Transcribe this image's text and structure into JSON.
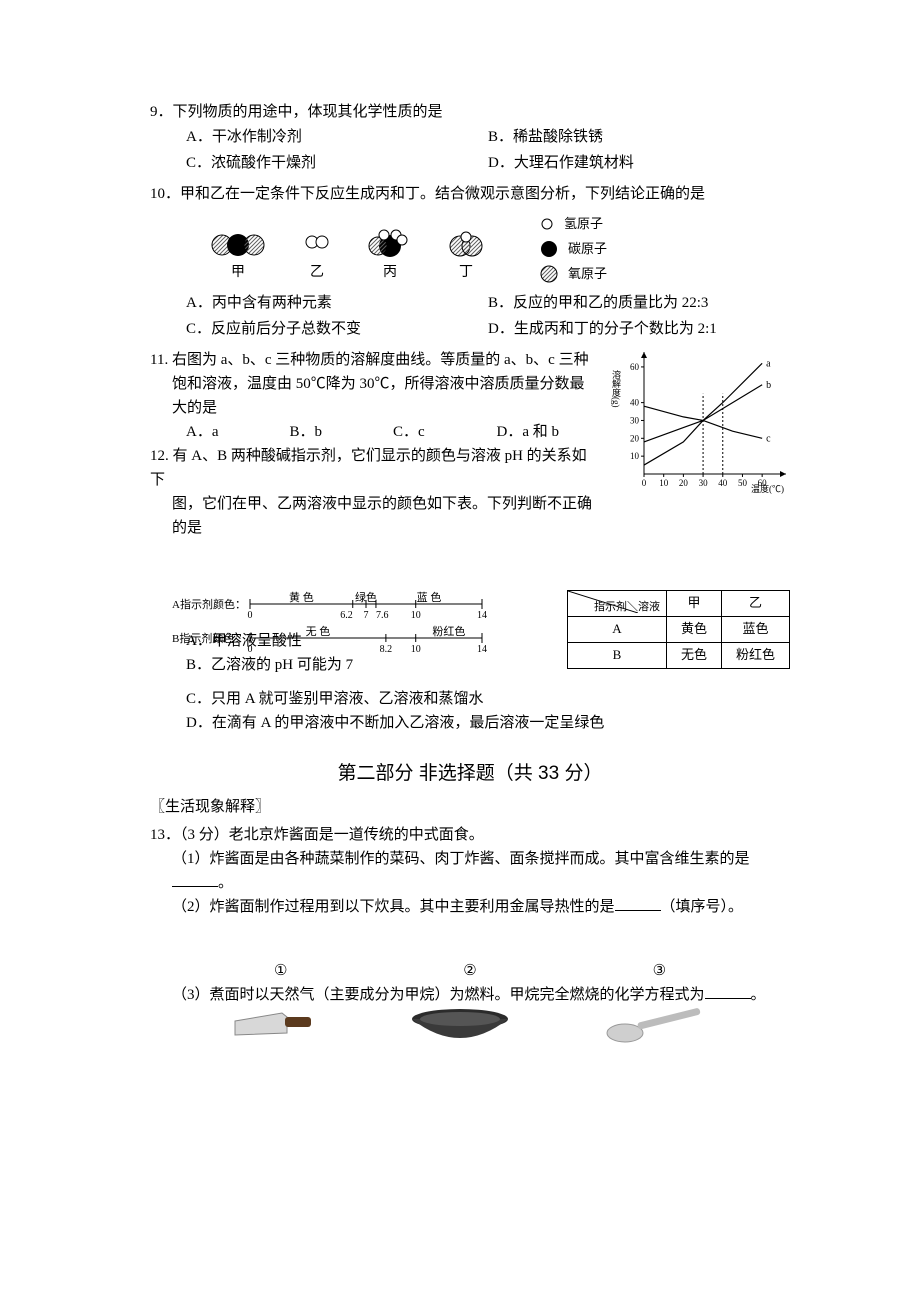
{
  "q9": {
    "num": "9．",
    "stem": "下列物质的用途中，体现其化学性质的是",
    "optA": "A．干冰作制冷剂",
    "optB": "B．稀盐酸除铁锈",
    "optC": "C．浓硫酸作干燥剂",
    "optD": "D．大理石作建筑材料"
  },
  "q10": {
    "num": "10．",
    "stem": "甲和乙在一定条件下反应生成丙和丁。结合微观示意图分析，下列结论正确的是",
    "mol_labels": {
      "a": "甲",
      "b": "乙",
      "c": "丙",
      "d": "丁"
    },
    "legend": {
      "h": "氢原子",
      "c": "碳原子",
      "o": "氧原子"
    },
    "atom_colors": {
      "h": "#ffffff",
      "h_stroke": "#000000",
      "c": "#000000",
      "o_fill": "#dcdcdc",
      "o_hatch": "#606060"
    },
    "optA": "A．丙中含有两种元素",
    "optB": "B．反应的甲和乙的质量比为  22:3",
    "optC": "C．反应前后分子总数不变",
    "optD": "D．生成丙和丁的分子个数比为  2:1"
  },
  "q11": {
    "num": "11. ",
    "stem1": "右图为 a、b、c 三种物质的溶解度曲线。等质量的 a、b、c 三种",
    "stem2": "饱和溶液，温度由 50℃降为 30℃，所得溶液中溶质质量分数最",
    "stem3": "大的是",
    "optA": "A．a",
    "optB": "B．b",
    "optC": "C．c",
    "optD": "D．a 和 b",
    "chart": {
      "y_label": "溶解度(g)",
      "x_label": "温度(℃)",
      "y_ticks": [
        10,
        20,
        30,
        40,
        60
      ],
      "x_ticks": [
        0,
        10,
        20,
        30,
        40,
        50,
        60
      ],
      "xlim": [
        0,
        65
      ],
      "ylim": [
        0,
        65
      ],
      "curves": {
        "a": {
          "label": "a",
          "color": "#000",
          "points": [
            [
              0,
              5
            ],
            [
              20,
              18
            ],
            [
              30,
              30
            ],
            [
              40,
              40
            ],
            [
              60,
              62
            ]
          ]
        },
        "b": {
          "label": "b",
          "color": "#000",
          "points": [
            [
              0,
              18
            ],
            [
              20,
              26
            ],
            [
              30,
              30
            ],
            [
              45,
              40
            ],
            [
              60,
              50
            ]
          ]
        },
        "c": {
          "label": "c",
          "color": "#000",
          "points": [
            [
              0,
              38
            ],
            [
              20,
              32
            ],
            [
              30,
              30
            ],
            [
              45,
              24
            ],
            [
              60,
              20
            ]
          ]
        }
      },
      "dash_x": [
        30,
        40
      ]
    }
  },
  "q12": {
    "num": "12. ",
    "stem1": "有 A、B 两种酸碱指示剂，它们显示的颜色与溶液 pH 的关系如下",
    "stem2": "图，它们在甲、乙两溶液中显示的颜色如下表。下列判断不正确的是",
    "scale": {
      "labelA": "A指示剂颜色：",
      "labelB": "B指示剂颜色：",
      "a_colors": [
        "黄  色",
        "绿色",
        "蓝  色"
      ],
      "b_colors": [
        "无  色",
        "粉红色"
      ],
      "ticks_a": [
        "0",
        "6.2",
        "7",
        "7.6",
        "10",
        "14"
      ],
      "ticks_b": [
        "0",
        "8.2",
        "10",
        "14"
      ]
    },
    "table": {
      "header_diag": "指示剂＼溶液",
      "col1": "甲",
      "col2": "乙",
      "rowA": "A",
      "a1": "黄色",
      "a2": "蓝色",
      "rowB": "B",
      "b1": "无色",
      "b2": "粉红色"
    },
    "optA": "A．甲溶液呈酸性",
    "optB": "B．乙溶液的 pH 可能为 7",
    "optC": "C．只用  A  就可鉴别甲溶液、乙溶液和蒸馏水",
    "optD": "D．在滴有  A  的甲溶液中不断加入乙溶液，最后溶液一定呈绿色"
  },
  "part2_title": "第二部分 非选择题（共 33 分）",
  "sub_life": "〖生活现象解释〗",
  "q13": {
    "num": "13．",
    "score": "（3  分）",
    "stem": "老北京炸酱面是一道传统的中式面食。",
    "p1a": "（1）炸酱面是由各种蔬菜制作的菜码、肉丁炸酱、面条搅拌而成。其中富含维生素的是",
    "p1b": "。",
    "p2a": "（2）炸酱面制作过程用到以下炊具。其中主要利用金属导热性的是",
    "p2b": "（填序号）。",
    "fig_labels": {
      "a": "①",
      "b": "②",
      "c": "③"
    },
    "p3a": "（3）煮面时以天然气（主要成分为甲烷）为燃料。甲烷完全燃烧的化学方程式为",
    "p3b": "。"
  }
}
